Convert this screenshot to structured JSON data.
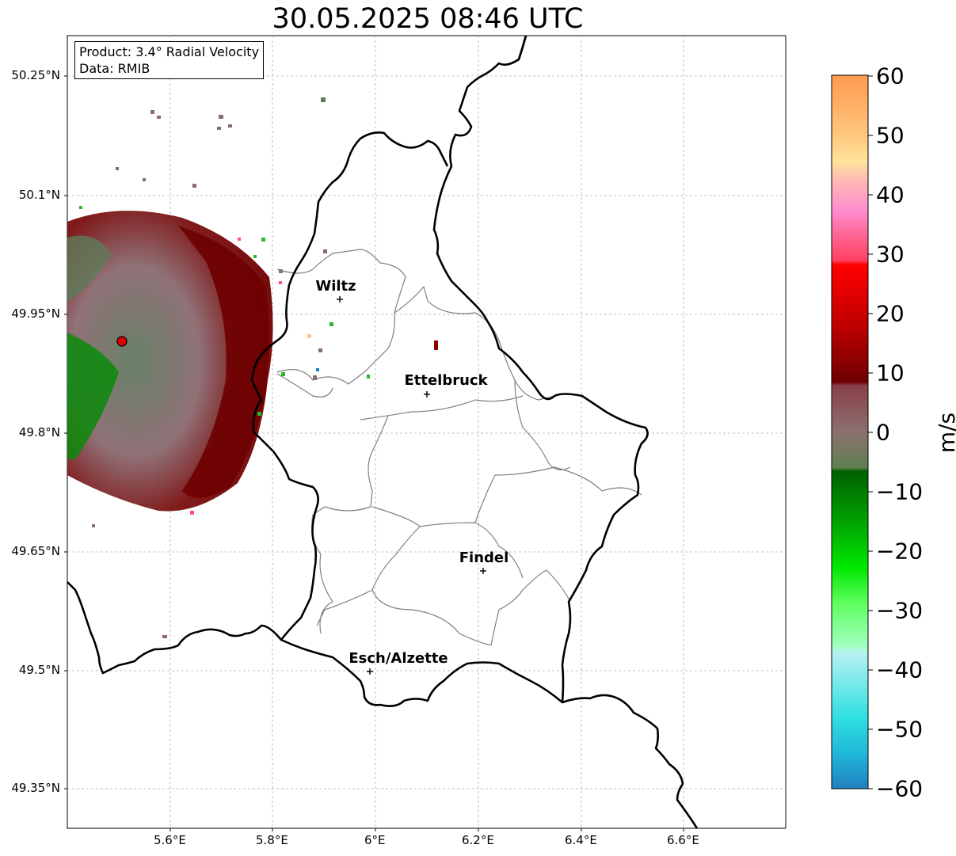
{
  "title": "30.05.2025 08:46 UTC",
  "info": {
    "product": "Product: 3.4° Radial Velocity",
    "data_source": "Data: RMIB"
  },
  "lat_labels": [
    "50.25°N",
    "50.1°N",
    "49.95°N",
    "49.8°N",
    "49.65°N",
    "49.5°N",
    "49.35°N"
  ],
  "lon_labels": [
    "5.6°E",
    "5.8°E",
    "6°E",
    "6.2°E",
    "6.4°E",
    "6.6°E"
  ],
  "cities": [
    {
      "name": "Wiltz"
    },
    {
      "name": "Ettelbruck"
    },
    {
      "name": "Findel"
    },
    {
      "name": "Esch/Alzette"
    }
  ],
  "colorbar": {
    "unit": "m/s",
    "ticks": [
      "60",
      "50",
      "40",
      "30",
      "20",
      "10",
      "0",
      "−10",
      "−20",
      "−30",
      "−40",
      "−50",
      "−60"
    ],
    "range": [
      -60,
      60
    ],
    "colors": {
      "high": "#ffa050",
      "pink": "#ff88c8",
      "red": "#ff0000",
      "darkred": "#6e0000",
      "neutral": "#8c7070",
      "green": "#00a000",
      "cyan": "#30e0e0",
      "blue": "#2080c0"
    }
  },
  "legend_colors": {
    "border": "#000000",
    "admin": "#808080",
    "grid": "#b0b0b0",
    "radar_site": "#e00000"
  }
}
